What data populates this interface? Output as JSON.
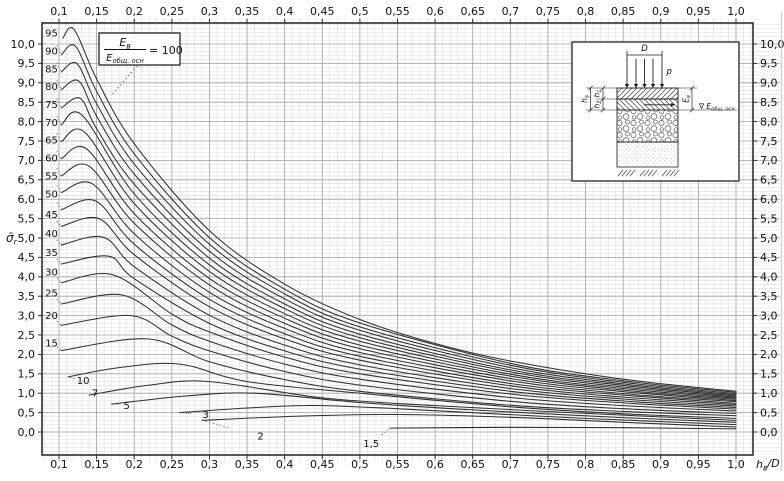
{
  "figure": {
    "axis": {
      "x_label": {
        "base": "h",
        "sub": "в",
        "post": "/D"
      },
      "y_label": {
        "base": "σ̄",
        "sub": "r"
      },
      "x_ticks": {
        "values": [
          0.1,
          0.15,
          0.2,
          0.25,
          0.3,
          0.35,
          0.4,
          0.45,
          0.5,
          0.55,
          0.6,
          0.65,
          0.7,
          0.75,
          0.8,
          0.85,
          0.9,
          0.95,
          1.0
        ],
        "labels": [
          "0,1",
          "0,15",
          "0,2",
          "0,25",
          "0,3",
          "0,35",
          "0,4",
          "0,45",
          "0,5",
          "0,55",
          "0,6",
          "0,65",
          "0,7",
          "0,75",
          "0,8",
          "0,85",
          "0,9",
          "0,95",
          "1,0"
        ]
      },
      "y_ticks": {
        "values": [
          0,
          0.5,
          1,
          1.5,
          2,
          2.5,
          3,
          3.5,
          4,
          4.5,
          5,
          5.5,
          6,
          6.5,
          7,
          7.5,
          8,
          8.5,
          9,
          9.5,
          10
        ],
        "labels": [
          "0,0",
          "0,5",
          "1,0",
          "1,5",
          "2,0",
          "2,5",
          "3,0",
          "3,5",
          "4,0",
          "4,5",
          "5,0",
          "5,5",
          "6,0",
          "6,5",
          "7,0",
          "7,5",
          "8,0",
          "8,5",
          "9,0",
          "9,5",
          "10,0"
        ]
      }
    },
    "legend": {
      "numerator": {
        "base": "E",
        "sub": "в"
      },
      "denominator": {
        "base": "E",
        "sub": "общ. осн"
      },
      "rhs": "= 100"
    },
    "inset": {
      "labels": {
        "width": {
          "base": "D"
        },
        "load": {
          "base": "p"
        },
        "layer1": {
          "base": "h",
          "sub": "1"
        },
        "layer2": {
          "base": "h",
          "sub": "2"
        },
        "total": {
          "base": "h",
          "sub": "в"
        },
        "modulus_top": {
          "base": "E",
          "sub": "в"
        },
        "datum": {
          "pre": "∇ ",
          "base": "E",
          "sub": "общ. осн"
        }
      }
    }
  },
  "colors": {
    "curve": "#2f2f2f",
    "grid_major": "#a0a0a0",
    "grid_minor": "#dcdcdc",
    "border": "#2e2e2e",
    "text": "#0f0f0f",
    "leader": "#666666",
    "page_edge": "#c9ced6"
  },
  "chart_data": {
    "type": "line",
    "title": "Nomogram σ̄r versus hв/D for ratios Eв/Eобщ.осн",
    "xlabel": "hв/D",
    "ylabel": "σ̄r",
    "xlim": [
      0.077,
      1.023
    ],
    "ylim": [
      -0.59,
      10.54
    ],
    "x_major_step": 0.05,
    "x_minor_step": 0.01,
    "y_major_step": 0.5,
    "y_minor_step": 0.1,
    "grid": "both",
    "legend_position": "top-left",
    "series": [
      {
        "ratio": 100,
        "label": "100",
        "labeled_by_legend": true,
        "points": [
          [
            0.105,
            10.15
          ],
          [
            0.12,
            10.38
          ],
          [
            0.15,
            9.1
          ],
          [
            0.2,
            7.43
          ],
          [
            0.3,
            5.19
          ],
          [
            0.4,
            3.81
          ],
          [
            0.5,
            2.9
          ],
          [
            0.6,
            2.28
          ],
          [
            0.7,
            1.83
          ],
          [
            0.85,
            1.36
          ],
          [
            1,
            1.05
          ]
        ]
      },
      {
        "ratio": 95,
        "label": "95",
        "label_pos": [
          0.09,
          10.28
        ],
        "points": [
          [
            0.103,
            9.72
          ],
          [
            0.122,
            9.94
          ],
          [
            0.15,
            8.78
          ],
          [
            0.2,
            7.17
          ],
          [
            0.3,
            5.01
          ],
          [
            0.4,
            3.68
          ],
          [
            0.5,
            2.81
          ],
          [
            0.7,
            1.77
          ],
          [
            0.85,
            1.32
          ],
          [
            1,
            1.02
          ]
        ]
      },
      {
        "ratio": 90,
        "label": "90",
        "label_pos": [
          0.09,
          9.82
        ],
        "points": [
          [
            0.103,
            9.28
          ],
          [
            0.124,
            9.49
          ],
          [
            0.15,
            8.46
          ],
          [
            0.2,
            6.91
          ],
          [
            0.3,
            4.84
          ],
          [
            0.4,
            3.56
          ],
          [
            0.5,
            2.71
          ],
          [
            0.7,
            1.72
          ],
          [
            0.85,
            1.28
          ],
          [
            1,
            0.99
          ]
        ]
      },
      {
        "ratio": 85,
        "label": "85",
        "label_pos": [
          0.09,
          9.36
        ],
        "points": [
          [
            0.103,
            8.82
          ],
          [
            0.126,
            9.05
          ],
          [
            0.15,
            8.14
          ],
          [
            0.2,
            6.65
          ],
          [
            0.3,
            4.66
          ],
          [
            0.4,
            3.43
          ],
          [
            0.5,
            2.62
          ],
          [
            0.7,
            1.66
          ],
          [
            0.85,
            1.24
          ],
          [
            1,
            0.96
          ]
        ]
      },
      {
        "ratio": 80,
        "label": "80",
        "label_pos": [
          0.09,
          8.9
        ],
        "points": [
          [
            0.103,
            8.35
          ],
          [
            0.128,
            8.6
          ],
          [
            0.15,
            7.82
          ],
          [
            0.2,
            6.39
          ],
          [
            0.3,
            4.48
          ],
          [
            0.4,
            3.3
          ],
          [
            0.5,
            2.52
          ],
          [
            0.7,
            1.6
          ],
          [
            0.85,
            1.2
          ],
          [
            1,
            0.93
          ]
        ]
      },
      {
        "ratio": 75,
        "label": "75",
        "label_pos": [
          0.09,
          8.44
        ],
        "points": [
          [
            0.103,
            7.91
          ],
          [
            0.131,
            8.16
          ],
          [
            0.2,
            6.14
          ],
          [
            0.3,
            4.31
          ],
          [
            0.4,
            3.18
          ],
          [
            0.5,
            2.43
          ],
          [
            0.7,
            1.55
          ],
          [
            0.85,
            1.16
          ],
          [
            1,
            0.9
          ]
        ]
      },
      {
        "ratio": 70,
        "label": "70",
        "label_pos": [
          0.09,
          7.98
        ],
        "points": [
          [
            0.103,
            7.48
          ],
          [
            0.134,
            7.73
          ],
          [
            0.2,
            5.89
          ],
          [
            0.3,
            4.14
          ],
          [
            0.4,
            3.05
          ],
          [
            0.5,
            2.34
          ],
          [
            0.7,
            1.49
          ],
          [
            0.85,
            1.12
          ],
          [
            1,
            0.87
          ]
        ]
      },
      {
        "ratio": 65,
        "label": "65",
        "label_pos": [
          0.09,
          7.52
        ],
        "points": [
          [
            0.103,
            7.04
          ],
          [
            0.137,
            7.29
          ],
          [
            0.2,
            5.63
          ],
          [
            0.3,
            3.96
          ],
          [
            0.4,
            2.93
          ],
          [
            0.5,
            2.24
          ],
          [
            0.7,
            1.44
          ],
          [
            0.85,
            1.08
          ],
          [
            1,
            0.84
          ]
        ]
      },
      {
        "ratio": 60,
        "label": "60",
        "label_pos": [
          0.09,
          7.06
        ],
        "points": [
          [
            0.103,
            6.6
          ],
          [
            0.14,
            6.85
          ],
          [
            0.2,
            5.38
          ],
          [
            0.3,
            3.79
          ],
          [
            0.4,
            2.8
          ],
          [
            0.5,
            2.15
          ],
          [
            0.7,
            1.38
          ],
          [
            0.85,
            1.04
          ],
          [
            1,
            0.81
          ]
        ]
      },
      {
        "ratio": 55,
        "label": "55",
        "label_pos": [
          0.09,
          6.6
        ],
        "points": [
          [
            0.103,
            6.17
          ],
          [
            0.144,
            6.4
          ],
          [
            0.2,
            5.11
          ],
          [
            0.3,
            3.6
          ],
          [
            0.4,
            2.67
          ],
          [
            0.5,
            2.05
          ],
          [
            0.7,
            1.32
          ],
          [
            0.85,
            0.99
          ],
          [
            1,
            0.78
          ]
        ]
      },
      {
        "ratio": 50,
        "label": "50",
        "label_pos": [
          0.09,
          6.14
        ],
        "points": [
          [
            0.103,
            5.73
          ],
          [
            0.149,
            5.95
          ],
          [
            0.2,
            4.84
          ],
          [
            0.3,
            3.42
          ],
          [
            0.4,
            2.53
          ],
          [
            0.5,
            1.95
          ],
          [
            0.7,
            1.25
          ],
          [
            0.85,
            0.95
          ],
          [
            1,
            0.74
          ]
        ]
      },
      {
        "ratio": 45,
        "label": "45",
        "label_pos": [
          0.09,
          5.6
        ],
        "points": [
          [
            0.103,
            5.3
          ],
          [
            0.153,
            5.5
          ],
          [
            0.2,
            4.57
          ],
          [
            0.3,
            3.23
          ],
          [
            0.4,
            2.4
          ],
          [
            0.5,
            1.85
          ],
          [
            0.7,
            1.19
          ],
          [
            0.85,
            0.9
          ],
          [
            1,
            0.71
          ]
        ]
      },
      {
        "ratio": 40,
        "label": "40",
        "label_pos": [
          0.09,
          5.12
        ],
        "points": [
          [
            0.103,
            4.82
          ],
          [
            0.159,
            5.02
          ],
          [
            0.2,
            4.26
          ],
          [
            0.3,
            3.01
          ],
          [
            0.4,
            2.24
          ],
          [
            0.5,
            1.73
          ],
          [
            0.7,
            1.12
          ],
          [
            0.85,
            0.85
          ],
          [
            1,
            0.67
          ]
        ]
      },
      {
        "ratio": 35,
        "label": "35",
        "label_pos": [
          0.09,
          4.62
        ],
        "points": [
          [
            0.103,
            4.33
          ],
          [
            0.166,
            4.53
          ],
          [
            0.2,
            3.95
          ],
          [
            0.3,
            2.8
          ],
          [
            0.4,
            2.09
          ],
          [
            0.5,
            1.62
          ],
          [
            0.7,
            1.05
          ],
          [
            0.85,
            0.8
          ],
          [
            1,
            0.63
          ]
        ]
      },
      {
        "ratio": 30,
        "label": "30",
        "label_pos": [
          0.09,
          4.12
        ],
        "points": [
          [
            0.103,
            3.85
          ],
          [
            0.172,
            4.05
          ],
          [
            0.25,
            3.04
          ],
          [
            0.3,
            2.58
          ],
          [
            0.4,
            1.93
          ],
          [
            0.5,
            1.5
          ],
          [
            0.7,
            0.98
          ],
          [
            0.85,
            0.75
          ],
          [
            1,
            0.59
          ]
        ]
      },
      {
        "ratio": 25,
        "label": "25",
        "label_pos": [
          0.09,
          3.58
        ],
        "points": [
          [
            0.103,
            3.3
          ],
          [
            0.184,
            3.53
          ],
          [
            0.25,
            2.76
          ],
          [
            0.3,
            2.34
          ],
          [
            0.4,
            1.75
          ],
          [
            0.5,
            1.36
          ],
          [
            0.7,
            0.89
          ],
          [
            0.85,
            0.68
          ],
          [
            1,
            0.54
          ]
        ]
      },
      {
        "ratio": 20,
        "label": "20",
        "label_pos": [
          0.09,
          3.0
        ],
        "points": [
          [
            0.103,
            2.75
          ],
          [
            0.196,
            3.0
          ],
          [
            0.25,
            2.47
          ],
          [
            0.3,
            2.09
          ],
          [
            0.4,
            1.56
          ],
          [
            0.5,
            1.21
          ],
          [
            0.7,
            0.79
          ],
          [
            0.85,
            0.6
          ],
          [
            1,
            0.48
          ]
        ]
      },
      {
        "ratio": 15,
        "label": "15",
        "label_pos": [
          0.09,
          2.3
        ],
        "points": [
          [
            0.103,
            2.1
          ],
          [
            0.218,
            2.4
          ],
          [
            0.3,
            1.81
          ],
          [
            0.4,
            1.35
          ],
          [
            0.5,
            1.05
          ],
          [
            0.7,
            0.69
          ],
          [
            0.85,
            0.53
          ],
          [
            1,
            0.42
          ]
        ]
      },
      {
        "ratio": 10,
        "label": "10",
        "label_pos": [
          0.132,
          1.33
        ],
        "points": [
          [
            0.112,
            1.42
          ],
          [
            0.18,
            1.66
          ],
          [
            0.26,
            1.75
          ],
          [
            0.35,
            1.3
          ],
          [
            0.5,
            1.0
          ],
          [
            0.7,
            0.65
          ],
          [
            0.85,
            0.47
          ],
          [
            1,
            0.35
          ]
        ]
      },
      {
        "ratio": 7,
        "label": "7",
        "label_pos": [
          0.148,
          1.0
        ],
        "points": [
          [
            0.14,
            0.95
          ],
          [
            0.22,
            1.21
          ],
          [
            0.3,
            1.3
          ],
          [
            0.45,
            0.88
          ],
          [
            0.6,
            0.68
          ],
          [
            0.8,
            0.48
          ],
          [
            1,
            0.3
          ]
        ]
      },
      {
        "ratio": 5,
        "label": "5",
        "label_pos": [
          0.19,
          0.68
        ],
        "points": [
          [
            0.17,
            0.72
          ],
          [
            0.27,
            0.93
          ],
          [
            0.36,
            1.0
          ],
          [
            0.5,
            0.76
          ],
          [
            0.65,
            0.57
          ],
          [
            0.85,
            0.37
          ],
          [
            1,
            0.25
          ]
        ]
      },
      {
        "ratio": 3,
        "label": "3",
        "label_pos": [
          0.295,
          0.45
        ],
        "points": [
          [
            0.26,
            0.5
          ],
          [
            0.36,
            0.63
          ],
          [
            0.45,
            0.68
          ],
          [
            0.6,
            0.55
          ],
          [
            0.8,
            0.35
          ],
          [
            1,
            0.19
          ]
        ]
      },
      {
        "ratio": 2,
        "label": "2",
        "label_pos": [
          0.368,
          -0.1
        ],
        "points": [
          [
            0.29,
            0.3
          ],
          [
            0.42,
            0.41
          ],
          [
            0.55,
            0.45
          ],
          [
            0.7,
            0.38
          ],
          [
            0.85,
            0.25
          ],
          [
            1,
            0.13
          ]
        ]
      },
      {
        "ratio": 1.5,
        "label": "1,5",
        "label_pos": [
          0.515,
          -0.3
        ],
        "points": [
          [
            0.54,
            0.1
          ],
          [
            0.7,
            0.12
          ],
          [
            0.85,
            0.11
          ],
          [
            1,
            0.08
          ]
        ]
      }
    ]
  }
}
